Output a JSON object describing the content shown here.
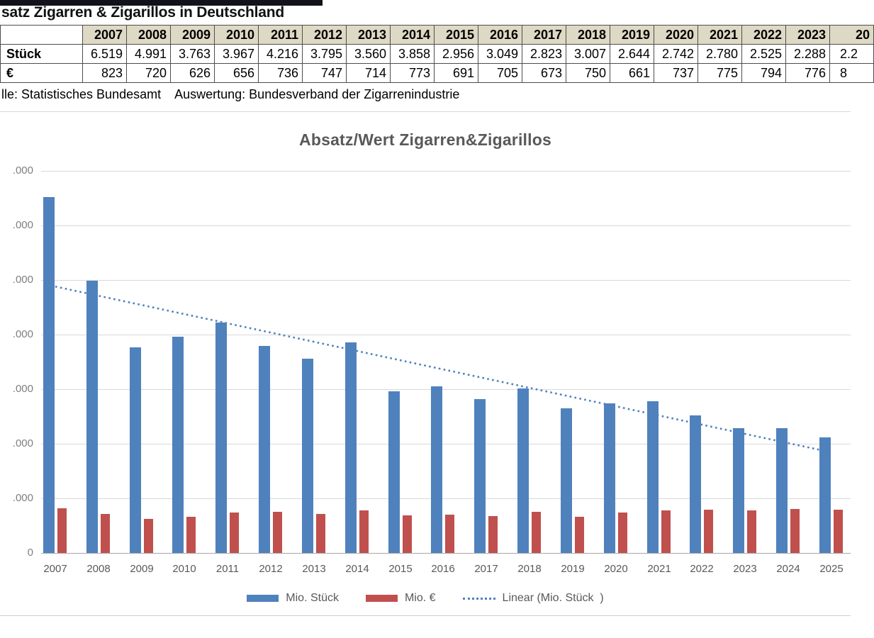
{
  "header": {
    "title": "satz Zigarren & Zigarillos in Deutschland",
    "source_note": "lle: Statistisches Bundesamt    Auswertung: Bundesverband der Zigarrenindustrie"
  },
  "table": {
    "header_years": [
      "2007",
      "2008",
      "2009",
      "2010",
      "2011",
      "2012",
      "2013",
      "2014",
      "2015",
      "2016",
      "2017",
      "2018",
      "2019",
      "2020",
      "2021",
      "2022",
      "2023",
      "20"
    ],
    "rows": [
      {
        "label": "Stück",
        "values": [
          "6.519",
          "4.991",
          "3.763",
          "3.967",
          "4.216",
          "3.795",
          "3.560",
          "3.858",
          "2.956",
          "3.049",
          "2.823",
          "3.007",
          "2.644",
          "2.742",
          "2.780",
          "2.525",
          "2.288",
          "2.2"
        ]
      },
      {
        "label": "€",
        "values": [
          "823",
          "720",
          "626",
          "656",
          "736",
          "747",
          "714",
          "773",
          "691",
          "705",
          "673",
          "750",
          "661",
          "737",
          "775",
          "794",
          "776",
          "8"
        ]
      }
    ],
    "header_bg": "#DDD9C4"
  },
  "chart_data": {
    "type": "bar",
    "title": "Absatz/Wert Zigarren&Zigarillos",
    "categories": [
      "2007",
      "2008",
      "2009",
      "2010",
      "2011",
      "2012",
      "2013",
      "2014",
      "2015",
      "2016",
      "2017",
      "2018",
      "2019",
      "2020",
      "2021",
      "2022",
      "2023",
      "2024",
      "2025"
    ],
    "series": [
      {
        "name": "Mio. Stück",
        "color": "#4F81BD",
        "values": [
          6519,
          4991,
          3763,
          3967,
          4216,
          3795,
          3560,
          3858,
          2956,
          3049,
          2823,
          3007,
          2644,
          2742,
          2780,
          2525,
          2288,
          2290,
          2120
        ]
      },
      {
        "name": "Mio. €",
        "color": "#C0504D",
        "values": [
          823,
          720,
          626,
          656,
          736,
          747,
          714,
          773,
          691,
          705,
          673,
          750,
          661,
          737,
          775,
          794,
          776,
          800,
          790
        ]
      }
    ],
    "trendline": {
      "label": "Linear (Mio. Stück  )",
      "color": "#4F81BD",
      "style": "dotted",
      "start_value": 4881,
      "end_value": 1845
    },
    "ylim": [
      0,
      7000
    ],
    "ytick_interval": 1000,
    "yaxis_labels_visible": [
      ".000",
      ".000",
      ".000",
      ".000",
      ".000",
      ".000",
      ".000",
      "0"
    ],
    "xlabel": "",
    "ylabel": "",
    "gridlines": true,
    "legend_position": "bottom"
  },
  "legend": {
    "items": [
      {
        "label": "Mio. Stück",
        "color": "#4F81BD",
        "type": "bar"
      },
      {
        "label": "Mio. €",
        "color": "#C0504D",
        "type": "bar"
      },
      {
        "label": "Linear (Mio. Stück  )",
        "color": "#4F81BD",
        "type": "dotted-line"
      }
    ]
  }
}
